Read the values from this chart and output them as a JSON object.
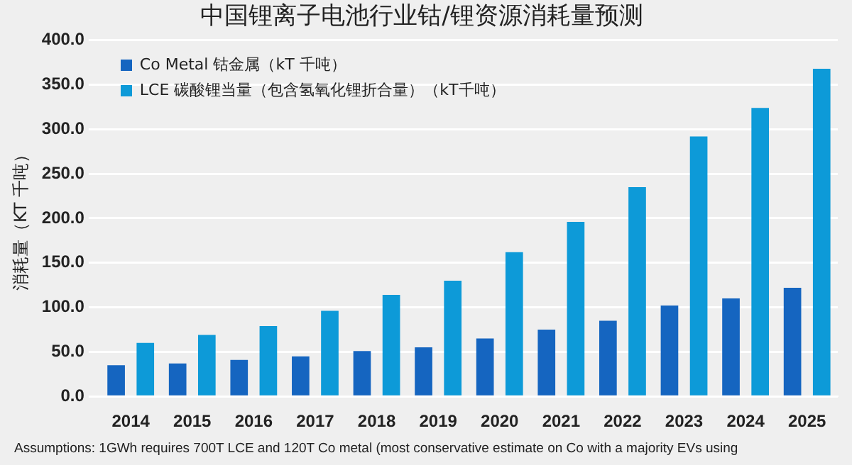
{
  "chart_data": {
    "type": "bar",
    "title": "中国锂离子电池行业钴/锂资源消耗量预测",
    "ylabel": "消耗量（KT 千吨）",
    "categories": [
      "2014",
      "2015",
      "2016",
      "2017",
      "2018",
      "2019",
      "2020",
      "2021",
      "2022",
      "2023",
      "2024",
      "2025"
    ],
    "series": [
      {
        "name": "Co Metal 钴金属（kT 千吨）",
        "color": "#1565c0",
        "values": [
          35,
          37,
          41,
          45,
          51,
          55,
          65,
          75,
          85,
          102,
          110,
          122
        ]
      },
      {
        "name": "LCE 碳酸锂当量（包含氢氧化锂折合量）（kT千吨）",
        "color": "#0d9ad8",
        "values": [
          60,
          69,
          79,
          96,
          114,
          130,
          162,
          196,
          235,
          292,
          324,
          368
        ]
      }
    ],
    "ylim": [
      0,
      400
    ],
    "yticks": [
      {
        "value": 0,
        "label": "0.0"
      },
      {
        "value": 50,
        "label": "50.0"
      },
      {
        "value": 100,
        "label": "100.0"
      },
      {
        "value": 150,
        "label": "150.0"
      },
      {
        "value": 200,
        "label": "200.0"
      },
      {
        "value": 250,
        "label": "250.0"
      },
      {
        "value": 300,
        "label": "300.0"
      },
      {
        "value": 350,
        "label": "350.0"
      },
      {
        "value": 400,
        "label": "400.0"
      }
    ],
    "grid": "y",
    "legend": "top left",
    "annotations": [
      "Assumptions: 1GWh requires 700T LCE and 120T Co metal (most conservative estimate on Co with a majority EVs using"
    ]
  }
}
